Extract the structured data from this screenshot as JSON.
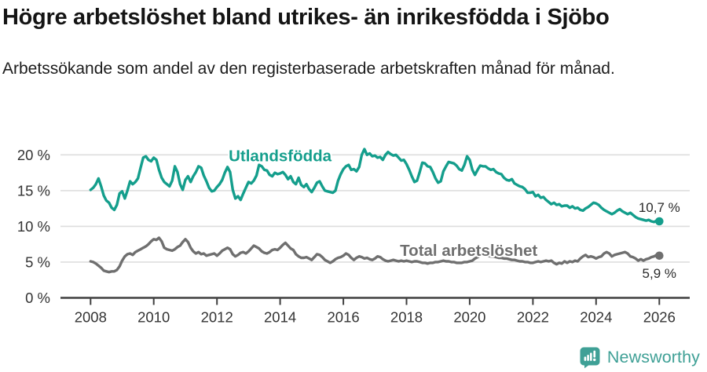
{
  "header": {
    "title": "Högre arbetslöshet bland utrikes- än inrikesfödda i Sjöbo",
    "subtitle": "Arbetssökande som andel av den registerbaserade arbetskraften månad för månad."
  },
  "footer": {
    "brand": "Newsworthy",
    "brand_color": "#3FA096",
    "logo_icon": "speech-bubble-bar-chart-exclamation"
  },
  "colors": {
    "series_foreign_born": "#149E8C",
    "series_total": "#6F6F6F",
    "grid": "#DEDEDE",
    "axis": "#3F3F3F",
    "tick_label": "#333333",
    "value_label": "#2B2B2B"
  },
  "chart_data": {
    "type": "line",
    "title": "Högre arbetslöshet bland utrikes- än inrikesfödda i Sjöbo",
    "subtitle": "Arbetssökande som andel av den registerbaserade arbetskraften månad för månad.",
    "xlabel": "",
    "ylabel": "",
    "xlim": [
      2007.1,
      2027.1
    ],
    "ylim": [
      0,
      22
    ],
    "grid": true,
    "legend_position": "inline-labels",
    "x_axis": {
      "ticks": [
        {
          "year": 2008,
          "label": "2008"
        },
        {
          "year": 2010,
          "label": "2010"
        },
        {
          "year": 2012,
          "label": "2012"
        },
        {
          "year": 2014,
          "label": "2014"
        },
        {
          "year": 2016,
          "label": "2016"
        },
        {
          "year": 2018,
          "label": "2018"
        },
        {
          "year": 2020,
          "label": "2020"
        },
        {
          "year": 2022,
          "label": "2022"
        },
        {
          "year": 2024,
          "label": "2024"
        },
        {
          "year": 2026,
          "label": "2026"
        }
      ]
    },
    "y_axis": {
      "ticks": [
        {
          "value": 0,
          "label": "0 %"
        },
        {
          "value": 5,
          "label": "5 %"
        },
        {
          "value": 10,
          "label": "10 %"
        },
        {
          "value": 15,
          "label": "15 %"
        },
        {
          "value": 20,
          "label": "20 %"
        }
      ],
      "grid_values": [
        5,
        10,
        15,
        20
      ]
    },
    "series": [
      {
        "name": "Utlandsfödda",
        "color": "#149E8C",
        "start_year": 2008,
        "interval": "monthly",
        "end_label": "10,7 %",
        "end_label_position": "above",
        "label_at": {
          "year": 2014.0,
          "value": 19.1
        },
        "values": [
          15.1,
          15.4,
          15.9,
          16.7,
          15.6,
          14.3,
          13.6,
          13.3,
          12.6,
          12.3,
          13.0,
          14.6,
          14.9,
          13.9,
          15.0,
          16.3,
          15.9,
          16.2,
          16.7,
          18.2,
          19.6,
          19.8,
          19.3,
          19.1,
          19.6,
          19.3,
          17.9,
          16.8,
          16.2,
          15.9,
          15.6,
          16.4,
          18.4,
          17.6,
          15.9,
          15.1,
          16.5,
          17.0,
          16.2,
          17.0,
          17.6,
          18.4,
          18.2,
          17.1,
          16.3,
          15.4,
          14.9,
          15.0,
          15.5,
          15.9,
          16.5,
          17.5,
          18.3,
          17.6,
          15.1,
          13.9,
          14.2,
          13.7,
          14.6,
          15.4,
          16.2,
          16.0,
          16.4,
          17.1,
          18.6,
          18.4,
          17.9,
          17.8,
          17.2,
          17.0,
          17.5,
          17.3,
          17.4,
          17.6,
          17.2,
          16.6,
          17.0,
          16.2,
          15.9,
          16.8,
          15.8,
          15.5,
          15.9,
          15.2,
          14.8,
          15.4,
          16.1,
          16.3,
          15.6,
          15.0,
          14.9,
          14.8,
          14.7,
          15.0,
          16.4,
          17.3,
          18.0,
          18.4,
          18.6,
          17.9,
          18.0,
          17.7,
          18.3,
          20.0,
          20.8,
          20.0,
          20.2,
          19.8,
          19.9,
          19.6,
          19.7,
          19.3,
          20.0,
          20.4,
          20.1,
          19.9,
          20.0,
          19.6,
          19.2,
          19.3,
          18.7,
          17.9,
          17.0,
          16.2,
          16.4,
          17.6,
          18.9,
          18.8,
          18.4,
          18.3,
          17.6,
          16.7,
          16.1,
          16.3,
          17.7,
          18.4,
          19.0,
          18.9,
          18.8,
          18.5,
          18.0,
          17.8,
          18.6,
          19.8,
          19.3,
          17.9,
          17.2,
          17.9,
          18.5,
          18.4,
          18.4,
          18.1,
          17.9,
          18.0,
          17.6,
          17.4,
          17.3,
          16.8,
          16.5,
          16.4,
          16.6,
          16.0,
          15.8,
          15.6,
          15.5,
          15.2,
          14.7,
          14.7,
          14.8,
          14.2,
          14.4,
          14.0,
          14.1,
          13.7,
          13.4,
          13.1,
          13.3,
          13.0,
          13.1,
          12.8,
          12.9,
          12.9,
          12.6,
          12.8,
          12.5,
          12.6,
          12.3,
          12.2,
          12.5,
          12.7,
          13.0,
          13.3,
          13.2,
          13.0,
          12.6,
          12.3,
          12.1,
          11.9,
          11.7,
          11.9,
          12.2,
          12.4,
          12.1,
          11.9,
          11.7,
          11.9,
          11.6,
          11.3,
          11.1,
          11.0,
          10.9,
          10.8,
          10.9,
          10.7,
          10.6,
          10.8,
          10.7
        ]
      },
      {
        "name": "Total arbetslöshet",
        "color": "#6F6F6F",
        "start_year": 2008,
        "interval": "monthly",
        "end_label": "5,9 %",
        "end_label_position": "below",
        "label_at": {
          "year": 2019.97,
          "value": 5.85
        },
        "values": [
          5.1,
          5.0,
          4.8,
          4.5,
          4.2,
          3.8,
          3.7,
          3.6,
          3.7,
          3.7,
          3.9,
          4.4,
          5.2,
          5.8,
          6.1,
          6.2,
          6.0,
          6.4,
          6.6,
          6.8,
          7.0,
          7.2,
          7.5,
          7.9,
          8.2,
          8.1,
          8.4,
          7.9,
          7.0,
          6.8,
          6.7,
          6.6,
          6.8,
          7.1,
          7.3,
          7.8,
          8.2,
          7.8,
          7.0,
          6.5,
          6.2,
          6.4,
          6.1,
          6.2,
          5.9,
          6.0,
          6.1,
          6.2,
          5.9,
          6.2,
          6.6,
          6.8,
          7.0,
          6.8,
          6.1,
          5.8,
          6.0,
          6.3,
          6.4,
          6.2,
          6.5,
          6.9,
          7.3,
          7.1,
          6.9,
          6.5,
          6.3,
          6.2,
          6.4,
          6.7,
          6.8,
          6.7,
          7.0,
          7.4,
          7.7,
          7.3,
          6.9,
          6.7,
          6.1,
          5.8,
          5.6,
          5.6,
          5.7,
          5.5,
          5.3,
          5.7,
          6.1,
          6.0,
          5.7,
          5.3,
          5.1,
          4.9,
          5.1,
          5.4,
          5.6,
          5.7,
          5.9,
          6.2,
          6.0,
          5.6,
          5.3,
          5.6,
          5.8,
          5.7,
          5.5,
          5.6,
          5.4,
          5.3,
          5.5,
          5.8,
          5.7,
          5.4,
          5.2,
          5.1,
          5.2,
          5.3,
          5.2,
          5.1,
          5.2,
          5.1,
          5.2,
          5.1,
          5.0,
          5.1,
          5.1,
          5.0,
          4.9,
          4.9,
          4.8,
          4.9,
          4.9,
          5.0,
          5.0,
          5.1,
          5.2,
          5.1,
          5.1,
          5.0,
          5.0,
          4.9,
          4.9,
          4.9,
          5.0,
          5.0,
          5.1,
          5.2,
          5.5,
          5.7,
          5.9,
          6.0,
          6.0,
          5.9,
          5.8,
          5.8,
          5.7,
          5.6,
          5.6,
          5.5,
          5.5,
          5.4,
          5.3,
          5.3,
          5.2,
          5.1,
          5.1,
          5.0,
          5.0,
          4.9,
          4.9,
          5.0,
          5.1,
          5.0,
          5.1,
          5.2,
          5.1,
          5.2,
          4.9,
          4.7,
          4.9,
          4.8,
          5.1,
          4.9,
          5.1,
          5.0,
          5.2,
          5.1,
          5.5,
          5.8,
          6.0,
          5.7,
          5.8,
          5.7,
          5.5,
          5.7,
          5.8,
          6.2,
          6.4,
          6.2,
          5.8,
          6.0,
          6.1,
          6.2,
          6.3,
          6.4,
          6.2,
          5.8,
          5.7,
          5.5,
          5.2,
          5.4,
          5.2,
          5.4,
          5.5,
          5.7,
          5.8,
          6.0,
          5.9
        ]
      }
    ]
  }
}
